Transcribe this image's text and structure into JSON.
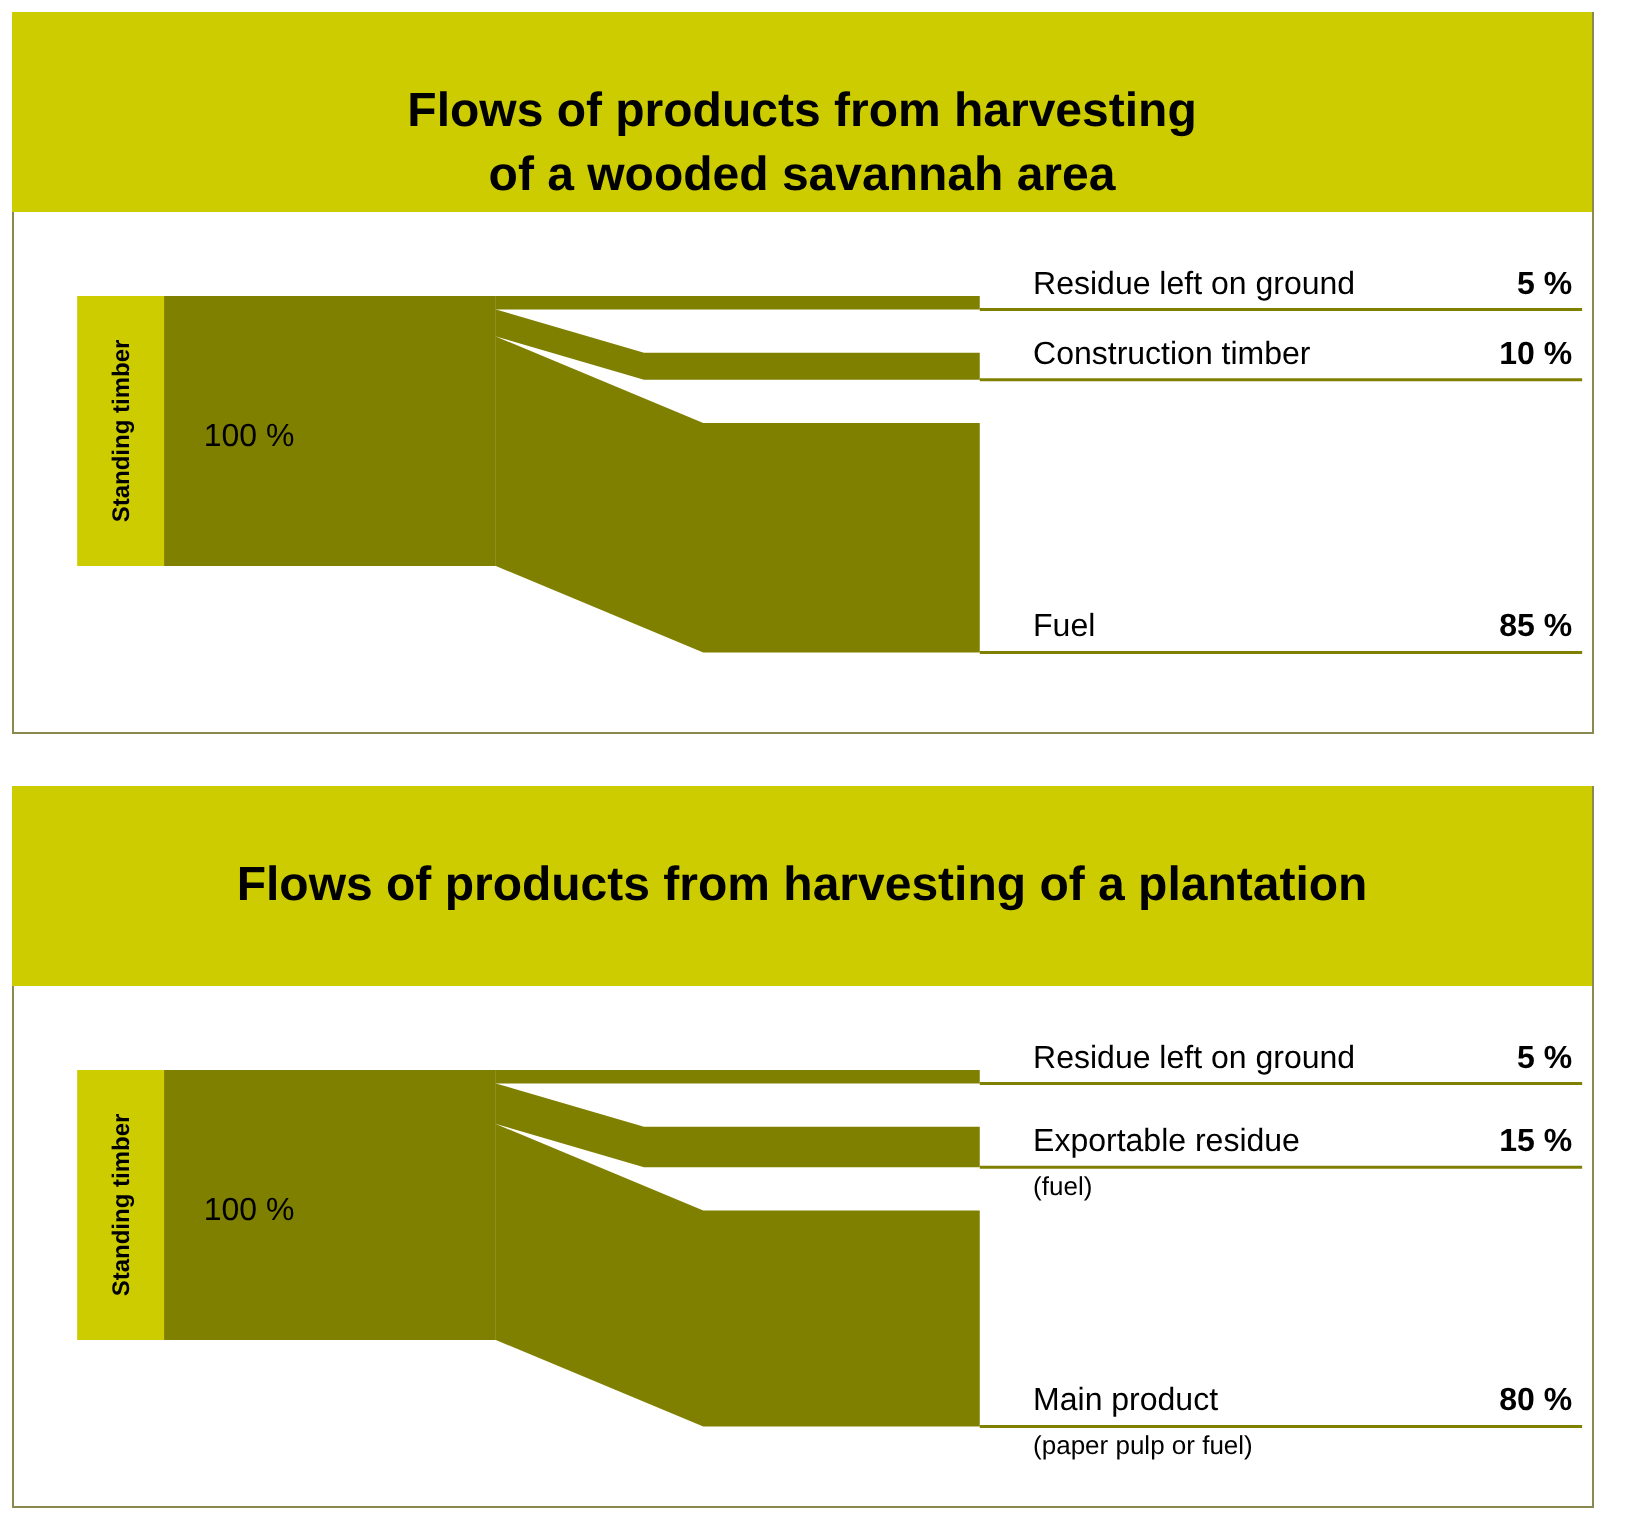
{
  "chart_data": [
    {
      "type": "other",
      "title": "Flows of products from harvesting\nof a wooded savannah area",
      "categories": [
        "Residue left on ground",
        "Construction timber",
        "Fuel"
      ],
      "values": [
        5,
        10,
        85
      ],
      "value_labels": [
        "5 %",
        "10 %",
        "85 %"
      ],
      "colors": [
        "#808000",
        "#808000",
        "#808000"
      ],
      "annotations": [
        "Standing timber",
        "100 %"
      ]
    },
    {
      "type": "other",
      "title": "Flows of products from harvesting of a plantation",
      "categories": [
        "Residue left on ground",
        "Exportable residue",
        "Main product"
      ],
      "values": [
        5,
        15,
        80
      ],
      "value_labels": [
        "5 %",
        "15 %",
        "80 %"
      ],
      "colors": [
        "#808000",
        "#808000",
        "#808000"
      ],
      "annotations": [
        "Standing timber",
        "100 %",
        "(fuel)",
        "(paper pulp or fuel)"
      ]
    }
  ]
}
